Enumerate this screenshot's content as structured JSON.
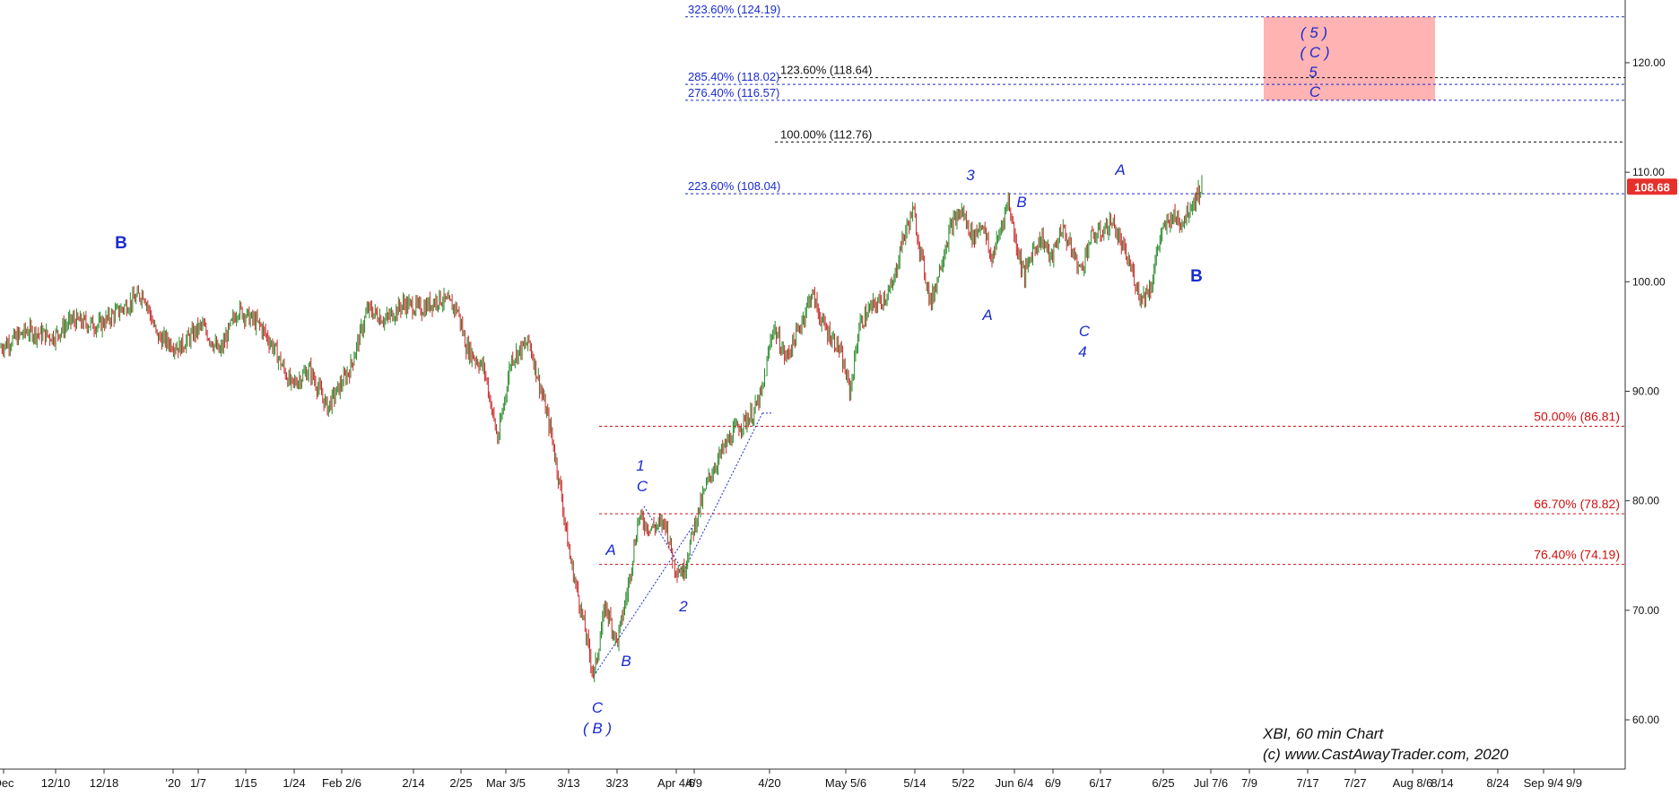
{
  "chart_data": {
    "type": "candlestick",
    "caption_lines": [
      "XBI, 60 min Chart",
      "(c) www.CastAwayTrader.com, 2020"
    ],
    "last_price": "108.68",
    "y_axis": {
      "ticks": [
        "60.00",
        "70.00",
        "80.00",
        "90.00",
        "100.00",
        "110.00",
        "120.00"
      ],
      "ylim": [
        56,
        127
      ]
    },
    "x_axis": {
      "ticks": [
        "Dec",
        "12/10",
        "12/18",
        "'20",
        "1/7",
        "1/15",
        "1/24",
        "Feb 2/6",
        "2/14",
        "2/25",
        "Mar 3/5",
        "3/13",
        "3/23",
        "Apr 4/6",
        "4/9",
        "4/20",
        "May 5/6",
        "5/14",
        "5/22",
        "Jun 6/4",
        "6/9",
        "6/17",
        "6/25",
        "Jul 7/6",
        "7/9",
        "7/17",
        "7/27",
        "Aug 8/6",
        "8/14",
        "8/24",
        "Sep 9/4",
        "9/9"
      ]
    },
    "price_path": [
      [
        0,
        94
      ],
      [
        30,
        95.5
      ],
      [
        60,
        95
      ],
      [
        80,
        96.5
      ],
      [
        110,
        96
      ],
      [
        135,
        97.5
      ],
      [
        160,
        99
      ],
      [
        175,
        95
      ],
      [
        200,
        94
      ],
      [
        225,
        96
      ],
      [
        245,
        93.5
      ],
      [
        265,
        97.5
      ],
      [
        290,
        96
      ],
      [
        305,
        94
      ],
      [
        325,
        90.5
      ],
      [
        345,
        92
      ],
      [
        365,
        88.5
      ],
      [
        390,
        92
      ],
      [
        410,
        97.5
      ],
      [
        430,
        96.5
      ],
      [
        450,
        98
      ],
      [
        470,
        97.5
      ],
      [
        490,
        98.5
      ],
      [
        510,
        97.5
      ],
      [
        520,
        94
      ],
      [
        540,
        92
      ],
      [
        555,
        85.5
      ],
      [
        570,
        93
      ],
      [
        590,
        94.5
      ],
      [
        605,
        89.5
      ],
      [
        615,
        86
      ],
      [
        625,
        81
      ],
      [
        635,
        75
      ],
      [
        648,
        70
      ],
      [
        662,
        64
      ],
      [
        675,
        70.5
      ],
      [
        688,
        67
      ],
      [
        700,
        72
      ],
      [
        712,
        78.5
      ],
      [
        725,
        77.5
      ],
      [
        742,
        78
      ],
      [
        752,
        74
      ],
      [
        762,
        73.5
      ],
      [
        775,
        78
      ],
      [
        790,
        82
      ],
      [
        805,
        84.5
      ],
      [
        820,
        86.5
      ],
      [
        840,
        88
      ],
      [
        850,
        90
      ],
      [
        862,
        96
      ],
      [
        876,
        93
      ],
      [
        890,
        95.5
      ],
      [
        905,
        99
      ],
      [
        918,
        96
      ],
      [
        935,
        94
      ],
      [
        948,
        90
      ],
      [
        958,
        96
      ],
      [
        970,
        97.5
      ],
      [
        985,
        98.5
      ],
      [
        995,
        99.5
      ],
      [
        1005,
        103.5
      ],
      [
        1018,
        106.5
      ],
      [
        1028,
        102
      ],
      [
        1038,
        98
      ],
      [
        1050,
        102
      ],
      [
        1060,
        105
      ],
      [
        1072,
        106.5
      ],
      [
        1085,
        104
      ],
      [
        1095,
        105.5
      ],
      [
        1105,
        102
      ],
      [
        1113,
        104
      ],
      [
        1124,
        107.5
      ],
      [
        1133,
        103.5
      ],
      [
        1142,
        100.5
      ],
      [
        1152,
        103
      ],
      [
        1162,
        104
      ],
      [
        1172,
        102
      ],
      [
        1184,
        105
      ],
      [
        1194,
        103
      ],
      [
        1205,
        101
      ],
      [
        1216,
        104
      ],
      [
        1228,
        104.5
      ],
      [
        1240,
        105.5
      ],
      [
        1252,
        103
      ],
      [
        1262,
        101
      ],
      [
        1272,
        98.5
      ],
      [
        1283,
        99.5
      ],
      [
        1293,
        104
      ],
      [
        1306,
        106
      ],
      [
        1318,
        105.5
      ],
      [
        1328,
        107
      ],
      [
        1340,
        108.68
      ]
    ],
    "fib_levels_right": [
      {
        "label": "323.60% (124.19)",
        "value": 124.19,
        "color": "#1a2bd0"
      },
      {
        "label": "285.40% (118.02)",
        "value": 118.02,
        "color": "#1a2bd0"
      },
      {
        "label": "276.40% (116.57)",
        "value": 116.57,
        "color": "#1a2bd0"
      },
      {
        "label": "223.60% (108.04)",
        "value": 108.04,
        "color": "#1a2bd0"
      },
      {
        "label": "123.60% (118.64)",
        "value": 118.64,
        "color": "#111111"
      },
      {
        "label": "100.00% (112.76)",
        "value": 112.76,
        "color": "#111111"
      }
    ],
    "fib_levels_retrace": [
      {
        "label": "50.00% (86.81)",
        "value": 86.81
      },
      {
        "label": "66.70% (78.82)",
        "value": 78.82
      },
      {
        "label": "76.40% (74.19)",
        "value": 74.19
      }
    ],
    "target_zone": {
      "y_low": 116.57,
      "y_high": 124.19,
      "color": "#ffb3b3"
    },
    "wave_labels": [
      "B",
      "C",
      "( B )",
      "A",
      "B",
      "1",
      "C",
      "2",
      "3",
      "A",
      "B",
      "C",
      "4",
      "A",
      "B",
      "( 5 )",
      "( C )",
      "5",
      "C"
    ],
    "colors": {
      "wave_label": "#1a2bd0",
      "up_candle": "#2a8a2a",
      "down_candle": "#c82828",
      "retrace_line": "#d01010",
      "price_badge": "#e8302a"
    }
  }
}
